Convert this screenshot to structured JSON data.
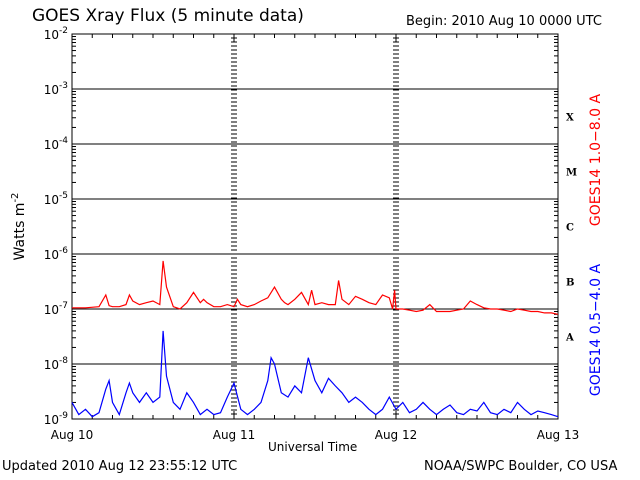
{
  "header": {
    "title": "GOES Xray Flux (5 minute data)",
    "begin": "Begin:  2010 Aug 10 0000 UTC"
  },
  "footer": {
    "updated": "Updated 2010 Aug 12 23:55:12 UTC",
    "credit": "NOAA/SWPC Boulder, CO USA"
  },
  "colors": {
    "long_channel": "#ff0000",
    "short_channel": "#0000ff",
    "frame": "#000000"
  },
  "chart_data": {
    "type": "line",
    "title": "GOES Xray Flux (5 minute data)",
    "xlabel": "Universal Time",
    "ylabel_main": "Watts m",
    "ylabel_exp": "-2",
    "y_scale": "log",
    "ylim": [
      1e-09,
      0.01
    ],
    "xlim": [
      "2010-08-10 00:00",
      "2010-08-13 00:00"
    ],
    "x_ticks": [
      "Aug 10",
      "Aug 11",
      "Aug 12",
      "Aug 13"
    ],
    "y_ticks": [
      {
        "base": "10",
        "exp": "-2"
      },
      {
        "base": "10",
        "exp": "-3"
      },
      {
        "base": "10",
        "exp": "-4"
      },
      {
        "base": "10",
        "exp": "-5"
      },
      {
        "base": "10",
        "exp": "-6"
      },
      {
        "base": "10",
        "exp": "-7"
      },
      {
        "base": "10",
        "exp": "-8"
      },
      {
        "base": "10",
        "exp": "-9"
      }
    ],
    "flare_classes": [
      "X",
      "M",
      "C",
      "B",
      "A"
    ],
    "grid": true,
    "series": [
      {
        "name": "GOES14 1.0−8.0 A",
        "color": "#ff0000",
        "x_hours": [
          0,
          2,
          4,
          5,
          5.5,
          6,
          7,
          8,
          8.5,
          9,
          10,
          11,
          12,
          13,
          13.5,
          14,
          15,
          16,
          17,
          18,
          19,
          19.5,
          20,
          21,
          22,
          23,
          24,
          24.5,
          25,
          26,
          27,
          28,
          29,
          30,
          31,
          31.5,
          32,
          33,
          34,
          35,
          35.5,
          36,
          37,
          38,
          39,
          39.5,
          40,
          41,
          42,
          43,
          44,
          45,
          46,
          47,
          47.5,
          47.8,
          48,
          49,
          50,
          51,
          52,
          53,
          54,
          55,
          56,
          57,
          58,
          59,
          60,
          61,
          62,
          63,
          64,
          65,
          66,
          67,
          68,
          69,
          70,
          71,
          72
        ],
        "values": [
          1.05e-07,
          1.05e-07,
          1.1e-07,
          1.8e-07,
          1.15e-07,
          1.1e-07,
          1.1e-07,
          1.2e-07,
          1.8e-07,
          1.4e-07,
          1.2e-07,
          1.3e-07,
          1.4e-07,
          1.2e-07,
          7.5e-07,
          2.5e-07,
          1.1e-07,
          1e-07,
          1.3e-07,
          2e-07,
          1.3e-07,
          1.5e-07,
          1.3e-07,
          1.1e-07,
          1.1e-07,
          1.2e-07,
          1.1e-07,
          1.5e-07,
          1.2e-07,
          1.1e-07,
          1.2e-07,
          1.4e-07,
          1.6e-07,
          2.5e-07,
          1.5e-07,
          1.3e-07,
          1.2e-07,
          1.5e-07,
          2e-07,
          1.2e-07,
          2.2e-07,
          1.2e-07,
          1.3e-07,
          1.2e-07,
          1.2e-07,
          3.3e-07,
          1.5e-07,
          1.2e-07,
          1.7e-07,
          1.5e-07,
          1.3e-07,
          1.2e-07,
          1.8e-07,
          1.6e-07,
          1e-07,
          2.2e-07,
          1e-07,
          1e-07,
          9.5e-08,
          9e-08,
          9.5e-08,
          1.2e-07,
          9e-08,
          9e-08,
          9e-08,
          9.5e-08,
          1e-07,
          1.4e-07,
          1.2e-07,
          1.05e-07,
          1e-07,
          1e-07,
          9.5e-08,
          9e-08,
          1e-07,
          9.5e-08,
          9e-08,
          9e-08,
          8.5e-08,
          8.5e-08,
          8e-08
        ]
      },
      {
        "name": "GOES14 0.5−4.0 A",
        "color": "#0000ff",
        "x_hours": [
          0,
          1,
          2,
          3,
          4,
          5,
          5.5,
          6,
          7,
          8,
          8.5,
          9,
          10,
          11,
          12,
          13,
          13.5,
          14,
          15,
          16,
          17,
          18,
          19,
          20,
          21,
          22,
          23,
          24,
          25,
          26,
          27,
          28,
          29,
          29.5,
          30,
          31,
          32,
          33,
          34,
          35,
          36,
          37,
          38,
          39,
          40,
          41,
          42,
          43,
          44,
          45,
          46,
          47,
          48,
          49,
          50,
          51,
          52,
          53,
          54,
          55,
          56,
          57,
          58,
          59,
          60,
          61,
          62,
          63,
          64,
          65,
          66,
          67,
          68,
          69,
          70,
          71,
          72
        ],
        "values": [
          2e-09,
          1.2e-09,
          1.5e-09,
          1.1e-09,
          1.3e-09,
          3.5e-09,
          5e-09,
          2e-09,
          1.2e-09,
          3e-09,
          4.5e-09,
          3e-09,
          2e-09,
          3e-09,
          2e-09,
          2.5e-09,
          4e-08,
          6e-09,
          2e-09,
          1.5e-09,
          3e-09,
          2e-09,
          1.2e-09,
          1.5e-09,
          1.2e-09,
          1.3e-09,
          2.5e-09,
          4.5e-09,
          1.5e-09,
          1.2e-09,
          1.5e-09,
          2e-09,
          5e-09,
          1.3e-08,
          1e-08,
          3e-09,
          2.5e-09,
          4e-09,
          3e-09,
          1.3e-08,
          5e-09,
          3e-09,
          5.5e-09,
          4e-09,
          3e-09,
          2e-09,
          2.5e-09,
          2e-09,
          1.5e-09,
          1.2e-09,
          1.5e-09,
          2.5e-09,
          1.5e-09,
          2e-09,
          1.3e-09,
          1.5e-09,
          2e-09,
          1.5e-09,
          1.2e-09,
          1.5e-09,
          1.8e-09,
          1.3e-09,
          1.2e-09,
          1.5e-09,
          1.4e-09,
          2e-09,
          1.3e-09,
          1.2e-09,
          1.5e-09,
          1.3e-09,
          2e-09,
          1.5e-09,
          1.2e-09,
          1.4e-09,
          1.3e-09,
          1.2e-09,
          1.1e-09
        ]
      }
    ]
  }
}
